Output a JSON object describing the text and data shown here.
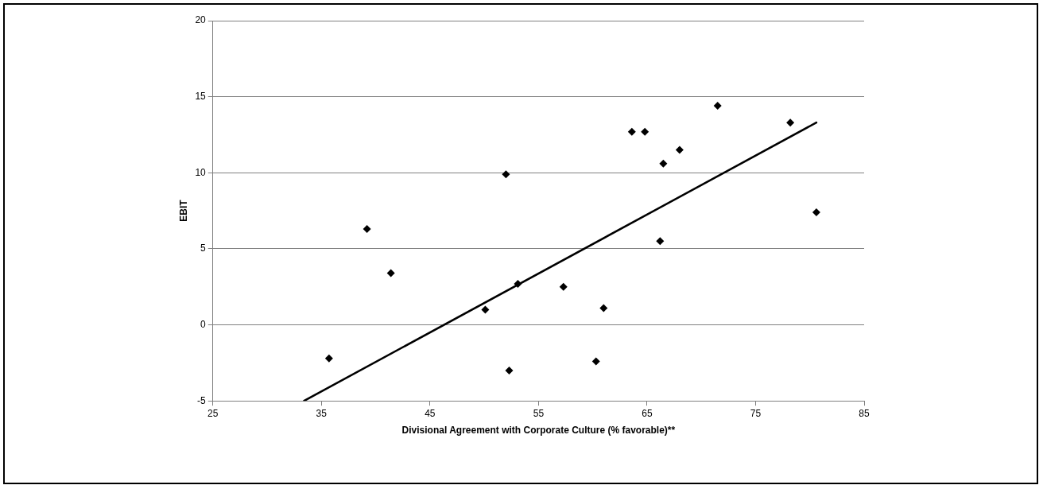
{
  "chart_data": {
    "type": "scatter",
    "xlabel": "Divisional Agreement with Corporate Culture (% favorable)**",
    "ylabel": "EBIT",
    "xlim": [
      25,
      85
    ],
    "xticks": [
      25,
      35,
      45,
      55,
      65,
      75,
      85
    ],
    "ylim": [
      -5,
      20
    ],
    "yticks": [
      -5,
      0,
      5,
      10,
      15,
      20
    ],
    "grid": "y",
    "legend": false,
    "marker": "diamond",
    "series": [
      {
        "color": "#000000",
        "x": [
          35.7,
          39.2,
          41.4,
          50.1,
          52.0,
          52.3,
          53.1,
          57.3,
          61.0,
          60.3,
          63.6,
          64.8,
          66.5,
          68.0,
          66.2,
          71.5,
          78.2,
          80.6
        ],
        "values": [
          -2.2,
          6.3,
          3.4,
          1.0,
          9.9,
          -3.0,
          2.7,
          2.5,
          1.1,
          -2.4,
          12.7,
          12.7,
          10.6,
          11.5,
          5.5,
          14.4,
          13.3,
          7.4
        ]
      },
      {
        "type": "line",
        "color": "#000000",
        "marker": "none",
        "x": [
          33.4,
          80.6
        ],
        "values": [
          -5,
          13.3
        ]
      }
    ]
  }
}
